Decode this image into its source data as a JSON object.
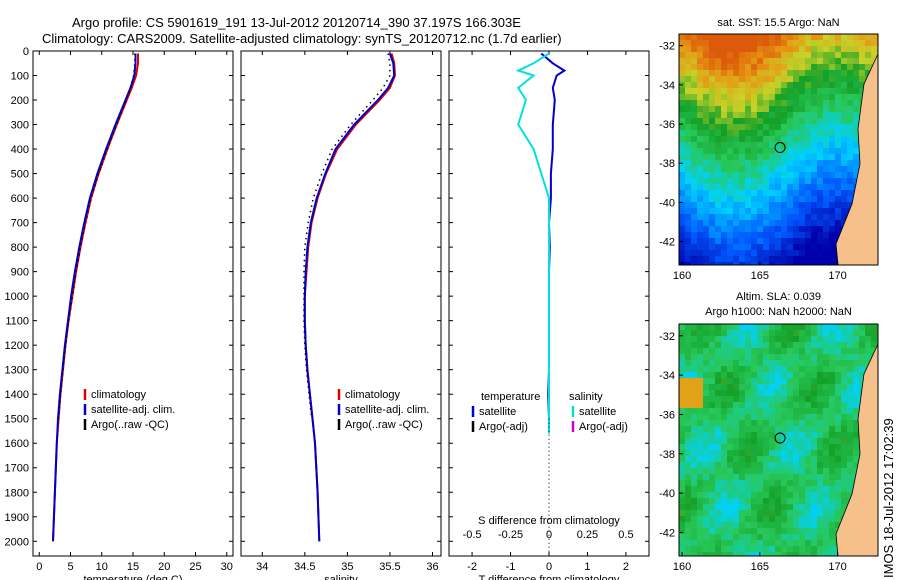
{
  "title_line1": "Argo profile: CS 5901619_191 13-Jul-2012 20120714_390 37.197S 166.303E",
  "title_line2": "Climatology: CARS2009. Satellite-adjusted climatology: synTS_20120712.nc (1.7d earlier)",
  "side_label": "IMOS 18-Jul-2012 17:02:39",
  "depth_ticks": [
    0,
    100,
    200,
    300,
    400,
    500,
    600,
    700,
    800,
    900,
    1000,
    1100,
    1200,
    1300,
    1400,
    1500,
    1600,
    1700,
    1800,
    1900,
    2000
  ],
  "colors": {
    "climatology": "#e00000",
    "satellite": "#0000cc",
    "argo": "#000000",
    "sat_sal": "#00e0e0",
    "argo_sal": "#cc00cc"
  },
  "chart_data": [
    {
      "type": "line",
      "name": "temperature panel",
      "xlabel": "temperature (deg C)",
      "xlim": [
        -1,
        31
      ],
      "ylim": [
        2060,
        0
      ],
      "xticks": [
        0,
        5,
        10,
        15,
        20,
        25,
        30
      ],
      "legend": [
        "climatology",
        "satellite-adj. clim.",
        "Argo(..raw -QC)"
      ],
      "depth": [
        10,
        50,
        100,
        150,
        200,
        300,
        400,
        500,
        600,
        700,
        800,
        900,
        1000,
        1100,
        1200,
        1300,
        1400,
        1500,
        1600,
        1800,
        2000
      ],
      "series": [
        {
          "name": "climatology",
          "color": "#e00000",
          "values": [
            15.8,
            15.8,
            15.5,
            14.8,
            14.0,
            12.4,
            10.9,
            9.5,
            8.3,
            7.4,
            6.6,
            5.9,
            5.3,
            4.7,
            4.2,
            3.8,
            3.4,
            3.1,
            2.8,
            2.5,
            2.2
          ]
        },
        {
          "name": "satellite-adj. clim.",
          "color": "#0000cc",
          "values": [
            15.4,
            15.4,
            15.2,
            14.6,
            13.8,
            12.2,
            10.7,
            9.3,
            8.1,
            7.2,
            6.4,
            5.7,
            5.1,
            4.6,
            4.1,
            3.7,
            3.3,
            3.0,
            2.8,
            2.5,
            2.2
          ]
        },
        {
          "name": "Argo(..raw -QC)",
          "color": "#000000",
          "dotted": true,
          "values": [
            15.3,
            15.3,
            15.1,
            14.6,
            13.9,
            12.4,
            10.9,
            9.5,
            8.3,
            7.4,
            6.6,
            5.9,
            5.3,
            4.7,
            4.2,
            3.8,
            3.4,
            3.1,
            null,
            null,
            null
          ]
        }
      ]
    },
    {
      "type": "line",
      "name": "salinity panel",
      "xlabel": "salinity",
      "xlim": [
        33.75,
        36.1
      ],
      "ylim": [
        2060,
        0
      ],
      "xticks": [
        34,
        34.5,
        35,
        35.5,
        36
      ],
      "legend": [
        "climatology",
        "satellite-adj. clim.",
        "Argo(..raw -QC)"
      ],
      "depth": [
        10,
        50,
        100,
        150,
        200,
        300,
        400,
        500,
        600,
        700,
        800,
        900,
        1000,
        1100,
        1200,
        1300,
        1400,
        1500,
        1600,
        1800,
        2000
      ],
      "series": [
        {
          "name": "climatology",
          "color": "#e00000",
          "values": [
            35.52,
            35.55,
            35.56,
            35.5,
            35.38,
            35.1,
            34.88,
            34.75,
            34.65,
            34.58,
            34.54,
            34.52,
            34.5,
            34.5,
            34.51,
            34.53,
            34.56,
            34.59,
            34.62,
            34.65,
            34.67
          ]
        },
        {
          "name": "satellite-adj. clim.",
          "color": "#0000cc",
          "values": [
            35.5,
            35.54,
            35.55,
            35.48,
            35.36,
            35.08,
            34.86,
            34.74,
            34.64,
            34.57,
            34.53,
            34.51,
            34.5,
            34.5,
            34.51,
            34.53,
            34.56,
            34.59,
            34.62,
            34.65,
            34.67
          ]
        },
        {
          "name": "Argo(..raw -QC)",
          "color": "#000000",
          "dotted": true,
          "values": [
            35.48,
            35.5,
            35.5,
            35.42,
            35.3,
            35.04,
            34.82,
            34.7,
            34.6,
            34.54,
            34.5,
            34.49,
            34.49,
            34.49,
            34.5,
            34.52,
            34.55,
            34.58,
            null,
            null,
            null
          ]
        }
      ]
    },
    {
      "type": "line",
      "name": "difference panel",
      "xlabel": "T difference from climatology",
      "xlabel2": "S difference from climatology",
      "xlim": [
        -2.6,
        2.6
      ],
      "ylim": [
        2060,
        0
      ],
      "xticks": [
        -2,
        -1,
        0,
        1,
        2
      ],
      "xticks2": [
        -0.5,
        -0.25,
        0,
        0.25,
        0.5
      ],
      "xtick_labels2": [
        "-0.5",
        "-0.25",
        "0",
        "0.25",
        "0.5"
      ],
      "legend_headers": [
        "temperature",
        "salinity"
      ],
      "legend": [
        "satellite",
        "Argo(-adj)",
        "satellite",
        "Argo(-adj)"
      ],
      "depth": [
        10,
        50,
        80,
        100,
        150,
        200,
        300,
        400,
        500,
        600,
        700,
        800,
        900,
        1000,
        1100,
        1200,
        1300,
        1400,
        1500,
        1560
      ],
      "series": [
        {
          "name": "T satellite",
          "color": "#0000cc",
          "values": [
            -0.2,
            0.1,
            0.4,
            0.2,
            0.1,
            0.15,
            0.1,
            0.1,
            0.05,
            0.05,
            0.0,
            0.02,
            0.0,
            0.0,
            0.0,
            0.0,
            0.0,
            -0.02,
            0.0,
            0.0
          ]
        },
        {
          "name": "S satellite",
          "color": "#00e0e0",
          "values": [
            0.0,
            -0.1,
            -0.2,
            -0.1,
            -0.2,
            -0.15,
            -0.2,
            -0.1,
            -0.05,
            0.0,
            0.0,
            0.0,
            0.0,
            0.0,
            0.0,
            0.0,
            0.0,
            0.0,
            0.0,
            0.0
          ]
        }
      ]
    },
    {
      "type": "heatmap",
      "name": "sst map",
      "title": "sat. SST: 15.5 Argo: NaN",
      "xticks": [
        160,
        165,
        170
      ],
      "yticks": [
        -32,
        -34,
        -36,
        -38,
        -40,
        -42
      ],
      "xlim": [
        159.8,
        172.6
      ],
      "ylim": [
        -43.2,
        -31.4
      ],
      "marker": {
        "lon": 166.3,
        "lat": -37.2
      }
    },
    {
      "type": "heatmap",
      "name": "sla map",
      "title": "Altim. SLA: 0.039",
      "title2": "Argo h1000: NaN h2000: NaN",
      "xticks": [
        160,
        165,
        170
      ],
      "yticks": [
        -32,
        -34,
        -36,
        -38,
        -40,
        -42
      ],
      "xlim": [
        159.8,
        172.6
      ],
      "ylim": [
        -43.2,
        -31.4
      ],
      "marker": {
        "lon": 166.3,
        "lat": -37.2
      }
    }
  ]
}
